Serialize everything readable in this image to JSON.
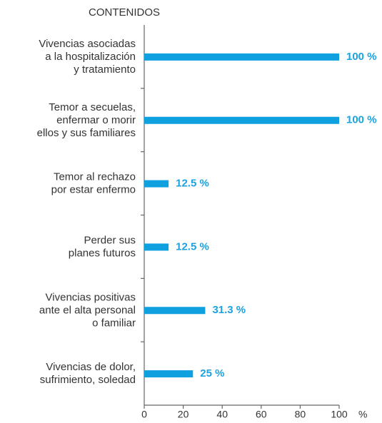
{
  "chart_data": {
    "type": "bar",
    "orientation": "horizontal",
    "y_axis_title": "CONTENIDOS",
    "x_axis_title": "%",
    "categories": [
      "Vivencias asociadas\na la hospitalización\ny tratamiento",
      "Temor a secuelas,\nenfermar o morir\nellos y sus familiares",
      "Temor al rechazo\npor estar enfermo",
      "Perder sus\nplanes futuros",
      "Vivencias positivas\nante el alta personal\no familiar",
      "Vivencias de dolor,\nsufrimiento, soledad"
    ],
    "values": [
      100,
      100,
      12.5,
      12.5,
      31.3,
      25
    ],
    "value_labels": [
      "100 %",
      "100 %",
      "12.5 %",
      "12.5 %",
      "31.3 %",
      "25 %"
    ],
    "color": "#0fa0e0",
    "xlim": [
      0,
      100
    ],
    "xticks": [
      0,
      20,
      40,
      60,
      80,
      100
    ]
  }
}
